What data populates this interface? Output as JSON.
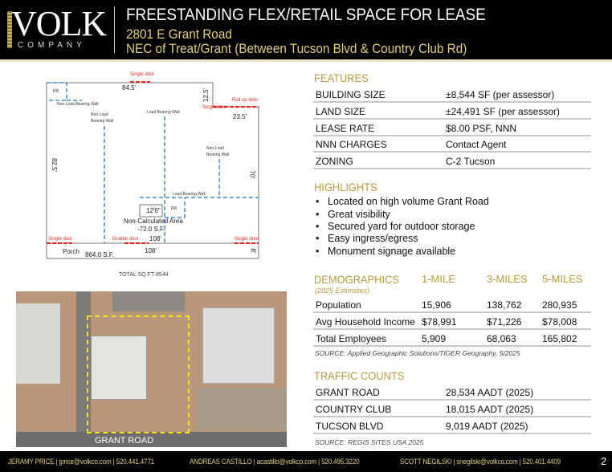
{
  "header": {
    "logo_main": "VOLK",
    "logo_sub": "COMPANY",
    "title": "FREESTANDING FLEX/RETAIL SPACE FOR LEASE",
    "address": "2801 E Grant Road",
    "location": "NEC of Treat/Grant (Between Tucson Blvd & Country Club Rd)"
  },
  "floorplan": {
    "single_door": "Single door",
    "roll_up_door": "Roll up door",
    "double_door": "Double door",
    "rr": "RR",
    "non_load_wall": "Non-Load Bearing Wall",
    "non_load_l1": "Non Load",
    "non_load_l2": "Bearing Wall",
    "load_wall": "Load Bearing Wall",
    "nl_l1": "Non-Load",
    "nl_l2": "Bearing Wall",
    "dim_top": "84.5'",
    "dim_step": "12.5'",
    "dim_right_top": "23.5'",
    "dim_left": "82.5'",
    "dim_right": "70'",
    "dim_bottom1": "108'",
    "dim_bottom2": "108'",
    "dim_porch": "8'",
    "box": "12'6\"",
    "non_calc": "Non-Calculated Area",
    "non_calc_sf": "-72.0 S.F.",
    "porch": "Porch",
    "porch_sf": "864.0 S.F.",
    "total": "TOTAL SQ FT 8544"
  },
  "aerial": {
    "road_label": "GRANT ROAD"
  },
  "features": {
    "heading": "FEATURES",
    "rows": [
      {
        "label": "BUILDING SIZE",
        "value": "±8,544 SF  (per assessor)"
      },
      {
        "label": "LAND SIZE",
        "value": "±24,491 SF (per assessor)"
      },
      {
        "label": "LEASE RATE",
        "value": "$8.00 PSF, NNN"
      },
      {
        "label": "NNN CHARGES",
        "value": "Contact Agent"
      },
      {
        "label": "ZONING",
        "value": "C-2 Tucson"
      }
    ]
  },
  "highlights": {
    "heading": "HIGHLIGHTS",
    "items": [
      "Located on high volume Grant Road",
      "Great visibility",
      "Secured yard for outdoor storage",
      "Easy ingress/egress",
      "Monument signage available"
    ]
  },
  "demographics": {
    "heading": "DEMOGRAPHICS",
    "subtitle": "(2025 Estimates)",
    "columns": [
      "1-MILE",
      "3-MILES",
      "5-MILES"
    ],
    "rows": [
      {
        "label": "Population",
        "values": [
          "15,906",
          "138,762",
          "280,935"
        ]
      },
      {
        "label": "Avg Household Income",
        "values": [
          "$78,991",
          "$71,226",
          "$78,008"
        ]
      },
      {
        "label": "Total Employees",
        "values": [
          "5,909",
          "68,063",
          "165,802"
        ]
      }
    ],
    "source": "SOURCE: Applied Geographic Solutions/TIGER Geography, 5/2025"
  },
  "traffic": {
    "heading": "TRAFFIC COUNTS",
    "rows": [
      {
        "label": "GRANT ROAD",
        "value": "28,534 AADT (2025)"
      },
      {
        "label": "COUNTRY CLUB",
        "value": "18,015 AADT (2025)"
      },
      {
        "label": "TUCSON BLVD",
        "value": "9,019 AADT (2025)"
      }
    ],
    "source": "SOURCE: REGIS SITES USA 2025"
  },
  "footer": {
    "contacts": [
      "JERAMY PRICE | jprice@volkco.com | 520.441.4771",
      "ANDREAS CASTILLO | acastillo@volkco.com | 520.495.3220",
      "SCOTT NEGILSKI | snegilski@volkco.com | 520.401.4409"
    ],
    "page": "2"
  },
  "colors": {
    "gold": "#b89b3e",
    "header_gold": "#e3cf7e",
    "door_red": "#e0261f",
    "wall_blue": "#4a8ad0",
    "boundary_yellow": "#f5e020"
  }
}
